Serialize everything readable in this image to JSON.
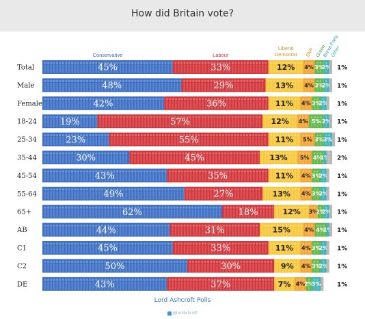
{
  "title": "How did Britain vote?",
  "footer": {
    "source": "Lord Ashcroft Polls",
    "handle": "@LordAshcroft"
  },
  "colors": {
    "Conservative": "#3d6fc4",
    "Labour": "#d3363b",
    "Liberal Democrat": "#f7c83b",
    "SNP": "#f3a532",
    "Green": "#63b84a",
    "Brexit Party": "#3fb4b7",
    "Other": "#b7b7b7"
  },
  "chart_data": {
    "type": "bar",
    "stacked": true,
    "orientation": "horizontal",
    "unit": "%",
    "categories": [
      "Total",
      "Male",
      "Female",
      "18-24",
      "25-34",
      "35-44",
      "45-54",
      "55-64",
      "65+",
      "AB",
      "C1",
      "C2",
      "DE"
    ],
    "series": [
      {
        "name": "Conservative",
        "values": [
          45,
          48,
          42,
          19,
          23,
          30,
          43,
          49,
          62,
          44,
          45,
          50,
          43
        ]
      },
      {
        "name": "Labour",
        "values": [
          33,
          29,
          36,
          57,
          55,
          45,
          35,
          27,
          18,
          31,
          33,
          30,
          37
        ]
      },
      {
        "name": "Liberal Democrat",
        "values": [
          12,
          13,
          11,
          12,
          11,
          13,
          11,
          13,
          12,
          15,
          11,
          9,
          7
        ]
      },
      {
        "name": "SNP",
        "values": [
          4,
          4,
          4,
          4,
          5,
          5,
          4,
          4,
          3,
          4,
          4,
          4,
          4
        ]
      },
      {
        "name": "Green",
        "values": [
          3,
          3,
          3,
          5,
          3,
          4,
          3,
          3,
          2,
          4,
          3,
          3,
          2
        ]
      },
      {
        "name": "Brexit Party",
        "values": [
          2,
          2,
          2,
          2,
          3,
          1,
          2,
          2,
          2,
          1,
          2,
          2,
          3
        ]
      },
      {
        "name": "Other",
        "values": [
          1,
          1,
          1,
          1,
          1,
          2,
          1,
          1,
          1,
          1,
          1,
          1,
          1
        ]
      }
    ],
    "header_labels": {
      "Conservative": "Conservative",
      "Labour": "Labour",
      "Liberal Democrat": "Liberal Democrat",
      "SNP": "SNP",
      "Green": "Green",
      "Brexit Party": "Brexit Party",
      "Other": "Other"
    }
  }
}
